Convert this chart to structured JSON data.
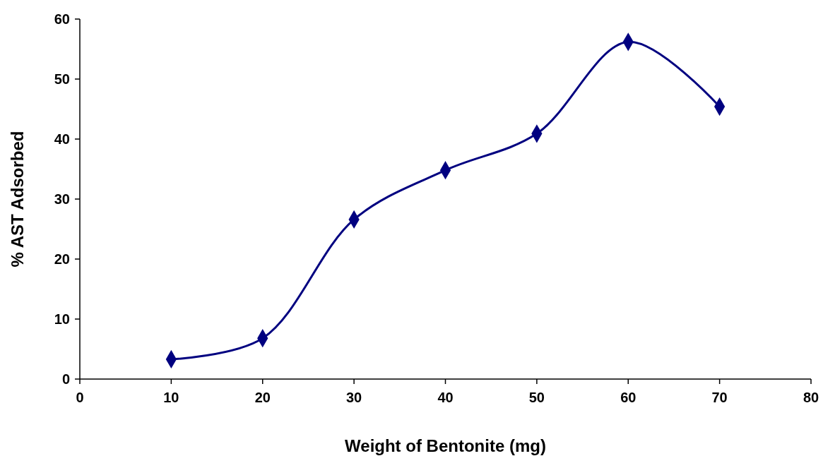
{
  "chart_data": {
    "type": "line",
    "xlabel": "Weight of Bentonite (mg)",
    "ylabel": "% AST Adsorbed",
    "x": [
      10,
      20,
      30,
      40,
      50,
      60,
      70
    ],
    "series": [
      {
        "color": "#000080",
        "values": [
          3.3,
          6.8,
          26.6,
          34.8,
          40.9,
          56.2,
          45.4
        ]
      }
    ],
    "xlim": [
      0,
      80
    ],
    "xticks": [
      0,
      10,
      20,
      30,
      40,
      50,
      60,
      70,
      80
    ],
    "ylim": [
      0,
      60
    ],
    "yticks": [
      0,
      10,
      20,
      30,
      40,
      50,
      60
    ],
    "grid": false,
    "marker": "diamond",
    "line_style": "solid"
  }
}
